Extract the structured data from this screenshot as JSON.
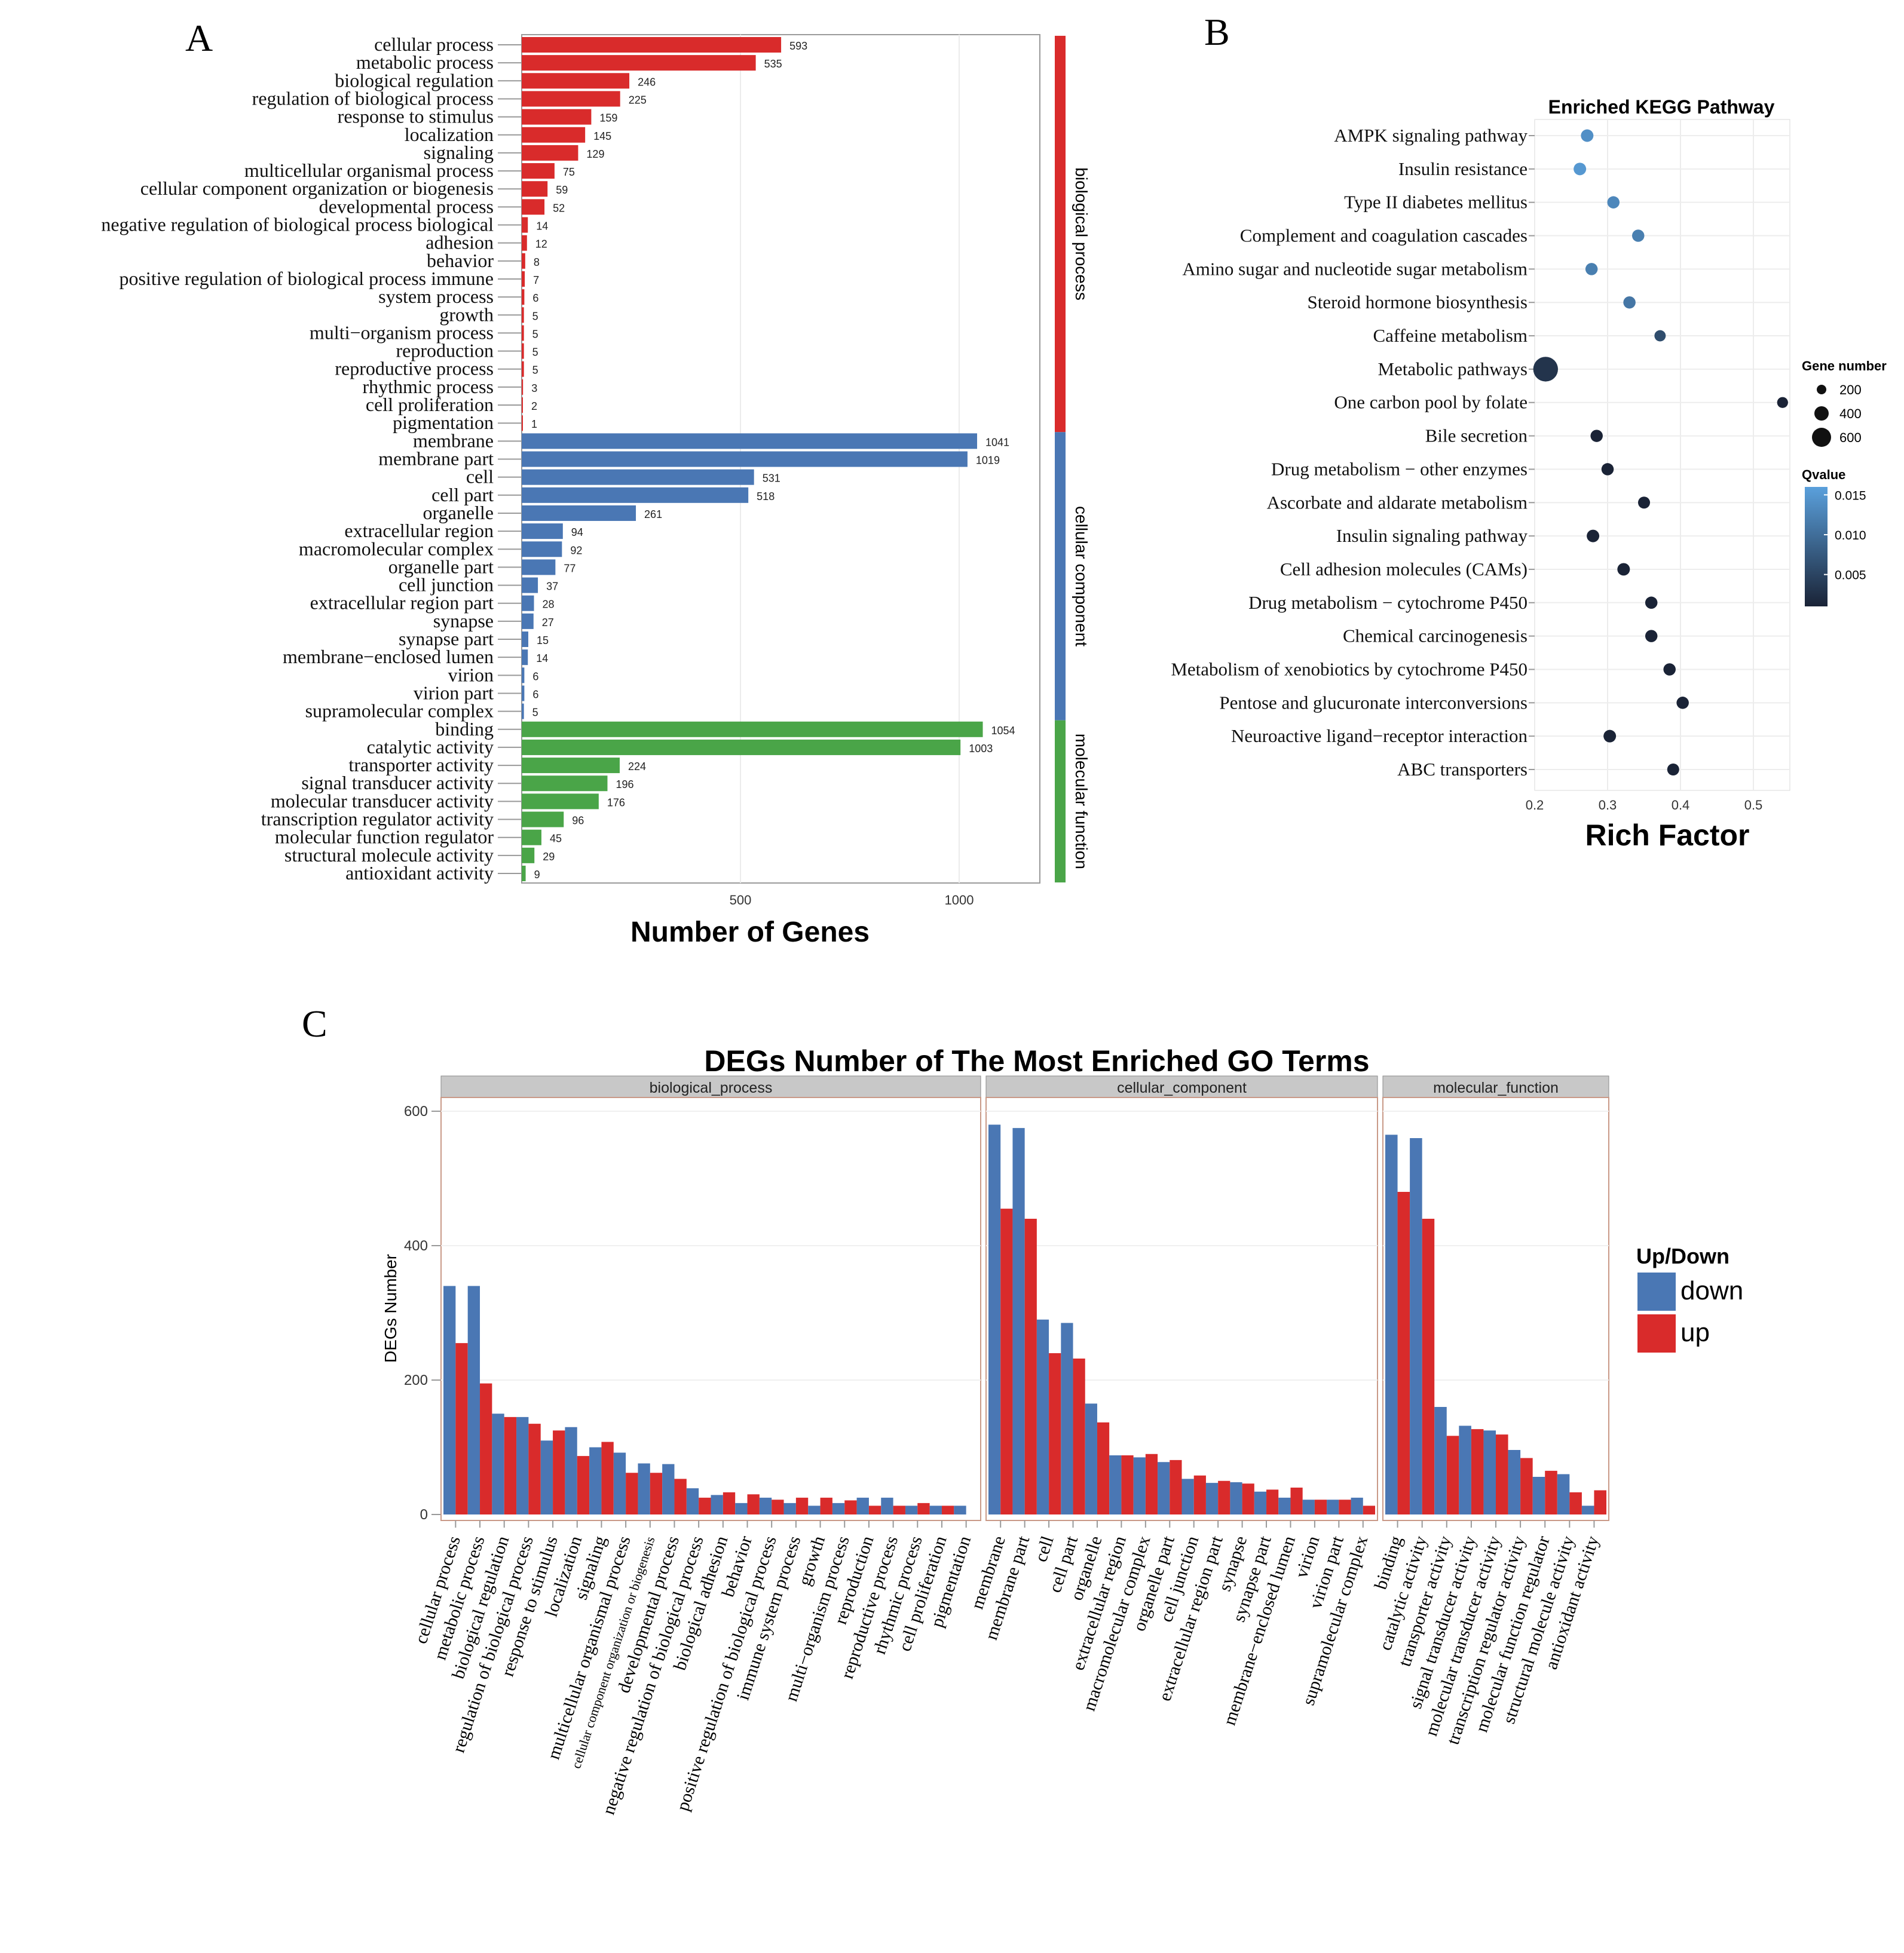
{
  "panel_labels": [
    "A",
    "B",
    "C"
  ],
  "colors": {
    "bp": "#d92b2b",
    "cc": "#4a77b4",
    "mf": "#4aa548",
    "down": "#4a77b4",
    "up": "#d92b2b",
    "point_high_q": "#5aa0dc",
    "point_low_q": "#1a2336"
  },
  "chart_data": [
    {
      "id": "A",
      "type": "bar",
      "orientation": "horizontal",
      "xlabel": "Number of Genes",
      "x_ticks": [
        500,
        1000
      ],
      "xlim": [
        0,
        1200
      ],
      "groups": [
        {
          "name": "biological process",
          "color_key": "bp",
          "items": [
            {
              "label": "cellular process",
              "value": 593
            },
            {
              "label": "metabolic process",
              "value": 535
            },
            {
              "label": "biological regulation",
              "value": 246
            },
            {
              "label": "regulation of biological process",
              "value": 225
            },
            {
              "label": "response to stimulus",
              "value": 159
            },
            {
              "label": "localization",
              "value": 145
            },
            {
              "label": "signaling",
              "value": 129
            },
            {
              "label": "multicellular organismal process",
              "value": 75
            },
            {
              "label": "cellular component organization or biogenesis",
              "value": 59
            },
            {
              "label": "developmental process",
              "value": 52
            },
            {
              "label": "negative regulation of biological process biological",
              "value": 14
            },
            {
              "label": "adhesion",
              "value": 12
            },
            {
              "label": "behavior",
              "value": 8
            },
            {
              "label": "positive regulation of biological process immune",
              "value": 7
            },
            {
              "label": "system process",
              "value": 6
            },
            {
              "label": "growth",
              "value": 5
            },
            {
              "label": "multi−organism process",
              "value": 5
            },
            {
              "label": "reproduction",
              "value": 5
            },
            {
              "label": "reproductive process",
              "value": 5
            },
            {
              "label": "rhythmic process",
              "value": 3
            },
            {
              "label": "cell proliferation",
              "value": 2
            },
            {
              "label": "pigmentation",
              "value": 1
            }
          ]
        },
        {
          "name": "cellular component",
          "color_key": "cc",
          "items": [
            {
              "label": "membrane",
              "value": 1041
            },
            {
              "label": "membrane part",
              "value": 1019
            },
            {
              "label": "cell",
              "value": 531
            },
            {
              "label": "cell part",
              "value": 518
            },
            {
              "label": "organelle",
              "value": 261
            },
            {
              "label": "extracellular region",
              "value": 94
            },
            {
              "label": "macromolecular complex",
              "value": 92
            },
            {
              "label": "organelle part",
              "value": 77
            },
            {
              "label": "cell junction",
              "value": 37
            },
            {
              "label": "extracellular region part",
              "value": 28
            },
            {
              "label": "synapse",
              "value": 27
            },
            {
              "label": "synapse part",
              "value": 15
            },
            {
              "label": "membrane−enclosed lumen",
              "value": 14
            },
            {
              "label": "virion",
              "value": 6
            },
            {
              "label": "virion part",
              "value": 6
            },
            {
              "label": "supramolecular complex",
              "value": 5
            }
          ]
        },
        {
          "name": "molecular function",
          "color_key": "mf",
          "items": [
            {
              "label": "binding",
              "value": 1054
            },
            {
              "label": "catalytic activity",
              "value": 1003
            },
            {
              "label": "transporter activity",
              "value": 224
            },
            {
              "label": "signal transducer activity",
              "value": 196
            },
            {
              "label": "molecular transducer activity",
              "value": 176
            },
            {
              "label": "transcription regulator activity",
              "value": 96
            },
            {
              "label": "molecular function regulator",
              "value": 45
            },
            {
              "label": "structural molecule activity",
              "value": 29
            },
            {
              "label": "antioxidant activity",
              "value": 9
            }
          ]
        }
      ]
    },
    {
      "id": "B",
      "type": "scatter",
      "title": "Enriched KEGG Pathway",
      "xlabel": "Rich Factor",
      "x_ticks": [
        0.2,
        0.3,
        0.4,
        0.5
      ],
      "xlim": [
        0.2,
        0.55
      ],
      "points": [
        {
          "label": "AMPK signaling pathway",
          "x": 0.272,
          "q": 0.014,
          "size": 40
        },
        {
          "label": "Insulin resistance",
          "x": 0.262,
          "q": 0.015,
          "size": 40
        },
        {
          "label": "Type II diabetes mellitus",
          "x": 0.308,
          "q": 0.013,
          "size": 35
        },
        {
          "label": "Complement and coagulation cascades",
          "x": 0.342,
          "q": 0.012,
          "size": 35
        },
        {
          "label": "Amino sugar and nucleotide sugar metabolism",
          "x": 0.278,
          "q": 0.012,
          "size": 35
        },
        {
          "label": "Steroid hormone biosynthesis",
          "x": 0.33,
          "q": 0.011,
          "size": 35
        },
        {
          "label": "Caffeine metabolism",
          "x": 0.372,
          "q": 0.006,
          "size": 20
        },
        {
          "label": "Metabolic pathways",
          "x": 0.215,
          "q": 0.003,
          "size": 620
        },
        {
          "label": "One carbon pool by folate",
          "x": 0.54,
          "q": 0.001,
          "size": 15
        },
        {
          "label": "Bile secretion",
          "x": 0.285,
          "q": 0.001,
          "size": 35
        },
        {
          "label": "Drug metabolism − other enzymes",
          "x": 0.3,
          "q": 0.001,
          "size": 35
        },
        {
          "label": "Ascorbate and aldarate metabolism",
          "x": 0.35,
          "q": 0.001,
          "size": 30
        },
        {
          "label": "Insulin signaling pathway",
          "x": 0.28,
          "q": 0.001,
          "size": 40
        },
        {
          "label": "Cell adhesion molecules (CAMs)",
          "x": 0.322,
          "q": 0.001,
          "size": 40
        },
        {
          "label": "Drug metabolism − cytochrome P450",
          "x": 0.36,
          "q": 0.001,
          "size": 35
        },
        {
          "label": "Chemical carcinogenesis",
          "x": 0.36,
          "q": 0.001,
          "size": 35
        },
        {
          "label": "Metabolism of xenobiotics by cytochrome P450",
          "x": 0.385,
          "q": 0.001,
          "size": 35
        },
        {
          "label": "Pentose and glucuronate interconversions",
          "x": 0.403,
          "q": 0.001,
          "size": 35
        },
        {
          "label": "Neuroactive ligand−receptor interaction",
          "x": 0.303,
          "q": 0.001,
          "size": 40
        },
        {
          "label": "ABC transporters",
          "x": 0.39,
          "q": 0.001,
          "size": 30
        }
      ],
      "size_legend": {
        "title": "Gene number",
        "values": [
          200,
          400,
          600
        ]
      },
      "color_legend": {
        "title": "Qvalue",
        "ticks": [
          0.015,
          0.01,
          0.005
        ],
        "range": [
          0.001,
          0.016
        ]
      }
    },
    {
      "id": "C",
      "type": "bar",
      "title": "DEGs Number of The Most Enriched GO Terms",
      "ylabel": "DEGs Number",
      "y_ticks": [
        0,
        200,
        400,
        600
      ],
      "y_tick_labels": [
        "0",
        "200",
        "400",
        "600"
      ],
      "legend": {
        "title": "Up/Down",
        "entries": [
          "down",
          "up"
        ]
      },
      "facets": [
        {
          "name": "biological_process",
          "categories": [
            {
              "label": "cellular process",
              "down": 340,
              "up": 255
            },
            {
              "label": "metabolic process",
              "down": 340,
              "up": 195
            },
            {
              "label": "biological regulation",
              "down": 150,
              "up": 145
            },
            {
              "label": "regulation of biological process",
              "down": 145,
              "up": 135
            },
            {
              "label": "response to stimulus",
              "down": 110,
              "up": 125
            },
            {
              "label": "localization",
              "down": 130,
              "up": 87
            },
            {
              "label": "signaling",
              "down": 100,
              "up": 108
            },
            {
              "label": "multicellular organismal process",
              "down": 92,
              "up": 62
            },
            {
              "label": "cellular component organization or biogenesis",
              "down": 76,
              "up": 62
            },
            {
              "label": "developmental process",
              "down": 75,
              "up": 53
            },
            {
              "label": "negative regulation of biological process",
              "down": 39,
              "up": 25
            },
            {
              "label": "biological adhesion",
              "down": 29,
              "up": 33
            },
            {
              "label": "behavior",
              "down": 17,
              "up": 30
            },
            {
              "label": "positive regulation of biological process",
              "down": 25,
              "up": 22
            },
            {
              "label": "immune system process",
              "down": 17,
              "up": 25
            },
            {
              "label": "growth",
              "down": 13,
              "up": 25
            },
            {
              "label": "multi−organism process",
              "down": 17,
              "up": 21
            },
            {
              "label": "reproduction",
              "down": 25,
              "up": 13
            },
            {
              "label": "reproductive process",
              "down": 25,
              "up": 13
            },
            {
              "label": "rhythmic process",
              "down": 13,
              "up": 17
            },
            {
              "label": "cell proliferation",
              "down": 13,
              "up": 13
            },
            {
              "label": "pigmentation",
              "down": 13,
              "up": 0
            }
          ]
        },
        {
          "name": "cellular_component",
          "categories": [
            {
              "label": "membrane",
              "down": 580,
              "up": 455
            },
            {
              "label": "membrane part",
              "down": 575,
              "up": 440
            },
            {
              "label": "cell",
              "down": 290,
              "up": 240
            },
            {
              "label": "cell part",
              "down": 285,
              "up": 232
            },
            {
              "label": "organelle",
              "down": 165,
              "up": 137
            },
            {
              "label": "extracellular region",
              "down": 88,
              "up": 88
            },
            {
              "label": "macromolecular complex",
              "down": 85,
              "up": 90
            },
            {
              "label": "organelle part",
              "down": 78,
              "up": 81
            },
            {
              "label": "cell junction",
              "down": 53,
              "up": 58
            },
            {
              "label": "extracellular region part",
              "down": 47,
              "up": 50
            },
            {
              "label": "synapse",
              "down": 48,
              "up": 46
            },
            {
              "label": "synapse part",
              "down": 34,
              "up": 37
            },
            {
              "label": "membrane−enclosed lumen",
              "down": 25,
              "up": 40
            },
            {
              "label": "virion",
              "down": 22,
              "up": 22
            },
            {
              "label": "virion part",
              "down": 22,
              "up": 22
            },
            {
              "label": "supramolecular complex",
              "down": 25,
              "up": 13
            }
          ]
        },
        {
          "name": "molecular_function",
          "categories": [
            {
              "label": "binding",
              "down": 565,
              "up": 480
            },
            {
              "label": "catalytic activity",
              "down": 560,
              "up": 440
            },
            {
              "label": "transporter activity",
              "down": 160,
              "up": 117
            },
            {
              "label": "signal transducer activity",
              "down": 132,
              "up": 127
            },
            {
              "label": "molecular transducer activity",
              "down": 125,
              "up": 119
            },
            {
              "label": "transcription regulator activity",
              "down": 96,
              "up": 84
            },
            {
              "label": "molecular function regulator",
              "down": 56,
              "up": 65
            },
            {
              "label": "structural molecule activity",
              "down": 60,
              "up": 33
            },
            {
              "label": "antioxidant activity",
              "down": 13,
              "up": 36
            }
          ]
        }
      ]
    }
  ]
}
